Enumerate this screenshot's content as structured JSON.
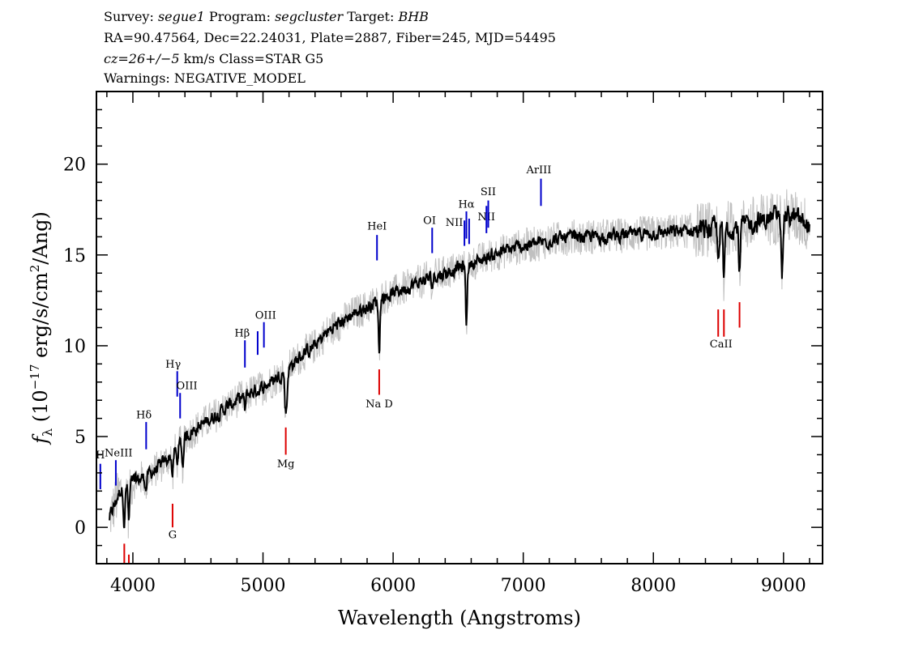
{
  "header": {
    "line1": {
      "survey_label": "Survey:",
      "survey": "segue1",
      "program_label": "Program:",
      "program": "segcluster",
      "target_label": "Target:",
      "target": "BHB"
    },
    "line2": "RA=90.47564, Dec=22.24031, Plate=2887, Fiber=245, MJD=54495",
    "line3": {
      "cz": "cz=26+/−5",
      "rest": " km/s Class=STAR G5"
    },
    "line4": "Warnings: NEGATIVE_MODEL"
  },
  "chart_data": {
    "type": "line",
    "xlabel": "Wavelength (Angstroms)",
    "ylabel_parts": {
      "f": "f",
      "sub": "λ",
      "pre": " (10",
      "exp1": "−17",
      "mid": " erg/s/cm",
      "exp2": "2",
      "post": "/Ang)"
    },
    "xlim": [
      3720,
      9300
    ],
    "ylim": [
      -2,
      24
    ],
    "x_ticks": [
      4000,
      5000,
      6000,
      7000,
      8000,
      9000
    ],
    "y_ticks": [
      0,
      5,
      10,
      15,
      20
    ],
    "grid": false,
    "series": [
      {
        "style": "noise",
        "color": "#c0c0c0",
        "x": [
          3820,
          3900,
          4000,
          4100,
          4200,
          4300,
          4400,
          4500,
          4600,
          4700,
          4800,
          4900,
          5000,
          5100,
          5200,
          5300,
          5400,
          5500,
          5600,
          5700,
          5800,
          5900,
          6000,
          6100,
          6200,
          6300,
          6400,
          6500,
          6600,
          6700,
          6800,
          6900,
          7000,
          7100,
          7200,
          7400,
          7600,
          7800,
          8000,
          8200,
          8400,
          8600,
          8800,
          9000,
          9100,
          9200
        ],
        "y": [
          0.5,
          2.0,
          2.5,
          2.8,
          3.3,
          4.0,
          5.0,
          5.5,
          6.0,
          6.5,
          7.0,
          7.4,
          7.7,
          8.2,
          8.8,
          9.5,
          10.0,
          10.8,
          11.3,
          11.8,
          12.1,
          12.6,
          12.9,
          13.2,
          13.5,
          13.8,
          14.0,
          14.3,
          14.5,
          14.8,
          15.1,
          15.3,
          15.5,
          15.6,
          15.8,
          16.0,
          16.0,
          16.1,
          16.2,
          16.3,
          16.4,
          16.5,
          16.8,
          17.2,
          17.0,
          16.6
        ]
      },
      {
        "style": "flux",
        "color": "#000000",
        "x": [
          3820,
          3900,
          4000,
          4100,
          4200,
          4300,
          4400,
          4500,
          4600,
          4700,
          4800,
          4900,
          5000,
          5100,
          5200,
          5300,
          5400,
          5500,
          5600,
          5700,
          5800,
          5900,
          6000,
          6100,
          6200,
          6300,
          6400,
          6500,
          6600,
          6700,
          6800,
          6900,
          7000,
          7100,
          7200,
          7400,
          7600,
          7800,
          8000,
          8200,
          8400,
          8600,
          8800,
          9000,
          9100,
          9200
        ],
        "y": [
          0.5,
          2.0,
          2.5,
          2.8,
          3.3,
          4.0,
          5.0,
          5.5,
          6.0,
          6.5,
          7.0,
          7.4,
          7.7,
          8.2,
          8.8,
          9.5,
          10.0,
          10.8,
          11.3,
          11.8,
          12.1,
          12.6,
          12.9,
          13.2,
          13.5,
          13.8,
          14.0,
          14.3,
          14.5,
          14.8,
          15.1,
          15.3,
          15.5,
          15.6,
          15.8,
          16.0,
          16.0,
          16.1,
          16.2,
          16.3,
          16.4,
          16.5,
          16.8,
          17.2,
          17.0,
          16.6
        ]
      }
    ],
    "absorption_features": [
      {
        "x": 3934,
        "depth": 2.0
      },
      {
        "x": 3969,
        "depth": 2.0
      },
      {
        "x": 4101,
        "depth": 0.7
      },
      {
        "x": 4305,
        "depth": 1.2
      },
      {
        "x": 4340,
        "depth": 0.8
      },
      {
        "x": 4383,
        "depth": 1.5
      },
      {
        "x": 4861,
        "depth": 0.8
      },
      {
        "x": 5172,
        "depth": 1.8
      },
      {
        "x": 5183,
        "depth": 1.6
      },
      {
        "x": 5893,
        "depth": 2.8
      },
      {
        "x": 6300,
        "depth": 0.5
      },
      {
        "x": 6563,
        "depth": 3.2
      },
      {
        "x": 8498,
        "depth": 1.8
      },
      {
        "x": 8542,
        "depth": 3.0
      },
      {
        "x": 8662,
        "depth": 2.6
      },
      {
        "x": 8990,
        "depth": 3.0
      }
    ],
    "emission_lines": [
      {
        "label": "H",
        "x": 3750,
        "y0": 2.1,
        "y1": 3.5,
        "lx": 3750,
        "ly": 3.8
      },
      {
        "label": "NeIII",
        "x": 3869,
        "y0": 2.3,
        "y1": 3.7,
        "lx": 3890,
        "ly": 3.9
      },
      {
        "label": "Hδ",
        "x": 4102,
        "y0": 4.3,
        "y1": 5.8,
        "lx": 4085,
        "ly": 6.0
      },
      {
        "label": "Hγ",
        "x": 4341,
        "y0": 7.2,
        "y1": 8.6,
        "lx": 4310,
        "ly": 8.8
      },
      {
        "label": "OIII",
        "x": 4363,
        "y0": 6.0,
        "y1": 7.4,
        "lx": 4415,
        "ly": 7.6
      },
      {
        "label": "Hβ",
        "x": 4861,
        "y0": 8.8,
        "y1": 10.3,
        "lx": 4840,
        "ly": 10.5
      },
      {
        "label": "",
        "x": 4959,
        "y0": 9.5,
        "y1": 10.8,
        "lx": 4959,
        "ly": 11.0
      },
      {
        "label": "OIII",
        "x": 5007,
        "y0": 9.9,
        "y1": 11.3,
        "lx": 5020,
        "ly": 11.5
      },
      {
        "label": "HeI",
        "x": 5876,
        "y0": 14.7,
        "y1": 16.1,
        "lx": 5876,
        "ly": 16.4
      },
      {
        "label": "OI",
        "x": 6300,
        "y0": 15.1,
        "y1": 16.5,
        "lx": 6280,
        "ly": 16.7
      },
      {
        "label": "NII",
        "x": 6548,
        "y0": 15.5,
        "y1": 16.9,
        "lx": 6470,
        "ly": 16.6
      },
      {
        "label": "Hα",
        "x": 6563,
        "y0": 15.9,
        "y1": 17.4,
        "lx": 6563,
        "ly": 17.6
      },
      {
        "label": "",
        "x": 6584,
        "y0": 15.6,
        "y1": 17.0,
        "lx": 6584,
        "ly": 17.2
      },
      {
        "label": "NII",
        "x": 6717,
        "y0": 16.2,
        "y1": 17.7,
        "lx": 6717,
        "ly": 16.9
      },
      {
        "label": "SII",
        "x": 6731,
        "y0": 16.5,
        "y1": 18.0,
        "lx": 6731,
        "ly": 18.3
      },
      {
        "label": "ArIII",
        "x": 7136,
        "y0": 17.7,
        "y1": 19.2,
        "lx": 7120,
        "ly": 19.5
      }
    ],
    "absorption_lines": [
      {
        "label": "",
        "x": 3934,
        "y0": -2.0,
        "y1": -0.9,
        "lx": 3934,
        "ly": -2.2
      },
      {
        "label": "",
        "x": 3969,
        "y0": -2.0,
        "y1": -1.5,
        "lx": 3969,
        "ly": -2.2
      },
      {
        "label": "G",
        "x": 4305,
        "y0": 0.0,
        "y1": 1.3,
        "lx": 4305,
        "ly": -0.6
      },
      {
        "label": "Mg",
        "x": 5175,
        "y0": 4.0,
        "y1": 5.5,
        "lx": 5175,
        "ly": 3.3
      },
      {
        "label": "Na D",
        "x": 5893,
        "y0": 7.3,
        "y1": 8.7,
        "lx": 5893,
        "ly": 6.6
      },
      {
        "label": "",
        "x": 8498,
        "y0": 10.5,
        "y1": 12.0,
        "lx": 8498,
        "ly": 10.5
      },
      {
        "label": "CaII",
        "x": 8542,
        "y0": 10.5,
        "y1": 12.0,
        "lx": 8520,
        "ly": 9.9
      },
      {
        "label": "",
        "x": 8662,
        "y0": 11.0,
        "y1": 12.4,
        "lx": 8662,
        "ly": 11.0
      }
    ],
    "colors": {
      "emission": "#0000cc",
      "absorption": "#dd0000",
      "noise": "#c0c0c0",
      "flux": "#000000"
    }
  }
}
